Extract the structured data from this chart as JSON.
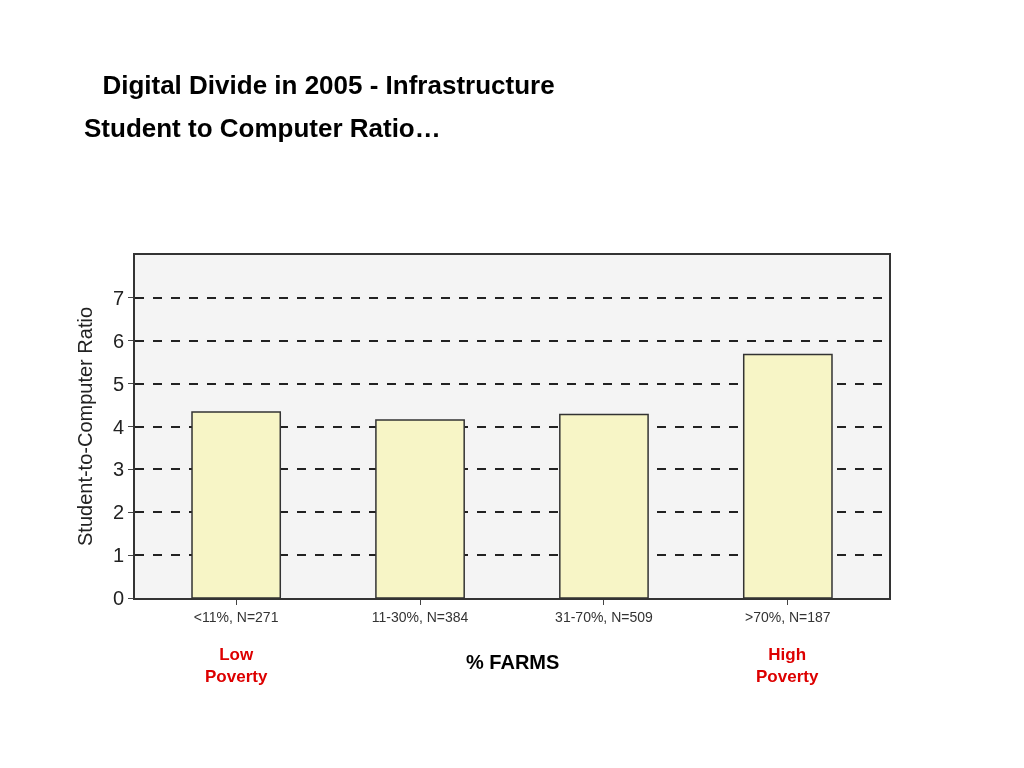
{
  "chart_data": {
    "type": "bar",
    "title": "Digital Divide in 2005 - Infrastructure",
    "subtitle": "Student to Computer Ratio…",
    "ylabel": "Student-to-Computer Ratio",
    "xlabel": "% FARMS",
    "categories": [
      "<11%, N=271",
      "11-30%, N=384",
      "31-70%, N=509",
      ">70%, N=187"
    ],
    "values": [
      4.34,
      4.15,
      4.28,
      5.68
    ],
    "color": "#f7f5c6",
    "ylim": [
      0,
      8
    ],
    "yticks": [
      0,
      1,
      2,
      3,
      4,
      5,
      6,
      7
    ],
    "grid": "y",
    "line_style": "dashed",
    "annotations": [
      "Low\nPoverty",
      "High\nPoverty"
    ]
  }
}
